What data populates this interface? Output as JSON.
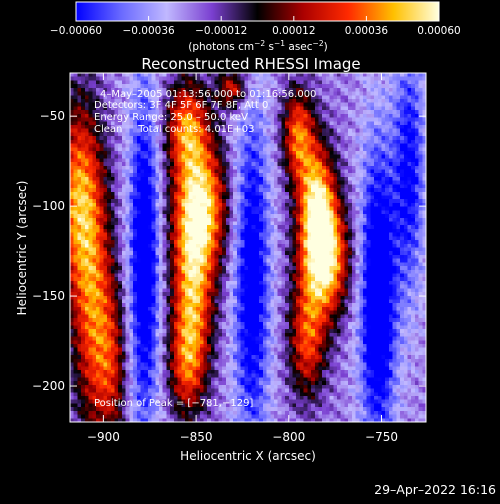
{
  "chart_data": {
    "type": "heatmap",
    "title": "Reconstructed RHESSI Image",
    "xlabel": "Heliocentric X (arcsec)",
    "ylabel": "Heliocentric Y (arcsec)",
    "xlim": [
      -918,
      -726
    ],
    "ylim": [
      -220,
      -26
    ],
    "x_ticks": [
      -900,
      -850,
      -800,
      -750
    ],
    "x_tick_labels": [
      "−900",
      "−850",
      "−800",
      "−750"
    ],
    "y_ticks": [
      -50,
      -100,
      -150,
      -200
    ],
    "y_tick_labels": [
      "−50",
      "−100",
      "−150",
      "−200"
    ],
    "colorbar": {
      "range": [
        -0.0006,
        0.0006
      ],
      "tick_values": [
        -0.0006,
        -0.00036,
        -0.00012,
        0.00012,
        0.00036,
        0.0006
      ],
      "tick_labels": [
        "−0.00060",
        "−0.00036",
        "−0.00012",
        "0.00012",
        "0.00036",
        "0.00060"
      ],
      "unit_prefix": "(photons cm",
      "unit_sup1": "−2",
      "unit_mid": " s",
      "unit_sup2": "−1",
      "unit_mid2": " asec",
      "unit_sup3": "−2",
      "unit_suffix": ")"
    },
    "annotations": [
      "4–May–2005 01:13:56.000 to 01:16:56.000",
      "Detectors: 3F 4F 5F 6F 7F 8F, Att 0",
      "Energy Range: 25.0 – 50.0 keV",
      "Clean     Total counts: 4.01E+03"
    ],
    "peak_label": "Position of Peak = [−781,−129]",
    "peak_position": [
      -781,
      -129
    ],
    "sources": [
      {
        "x": -913,
        "y": -95,
        "sx": 9,
        "sy": 38,
        "amp": 0.00062
      },
      {
        "x": -905,
        "y": -165,
        "sx": 8,
        "sy": 45,
        "amp": 0.0005
      },
      {
        "x": -895,
        "y": -190,
        "sx": 6,
        "sy": 30,
        "amp": 0.0003
      },
      {
        "x": -855,
        "y": -55,
        "sx": 8,
        "sy": 18,
        "amp": 0.00055
      },
      {
        "x": -848,
        "y": -100,
        "sx": 10,
        "sy": 25,
        "amp": 0.00078
      },
      {
        "x": -852,
        "y": -150,
        "sx": 8,
        "sy": 30,
        "amp": 0.0006
      },
      {
        "x": -855,
        "y": -190,
        "sx": 7,
        "sy": 20,
        "amp": 0.0004
      },
      {
        "x": -795,
        "y": -60,
        "sx": 6,
        "sy": 18,
        "amp": 0.00055
      },
      {
        "x": -785,
        "y": -95,
        "sx": 7,
        "sy": 22,
        "amp": 0.00065
      },
      {
        "x": -781,
        "y": -129,
        "sx": 9,
        "sy": 22,
        "amp": 0.00085
      },
      {
        "x": -790,
        "y": -175,
        "sx": 7,
        "sy": 22,
        "amp": 0.0005
      },
      {
        "x": -830,
        "y": -35,
        "sx": 6,
        "sy": 8,
        "amp": 0.00045
      },
      {
        "x": -878,
        "y": -130,
        "sx": 6,
        "sy": 70,
        "amp": -0.00055
      },
      {
        "x": -820,
        "y": -140,
        "sx": 7,
        "sy": 70,
        "amp": -0.0005
      },
      {
        "x": -752,
        "y": -150,
        "sx": 7,
        "sy": 60,
        "amp": -0.0006
      },
      {
        "x": -735,
        "y": -80,
        "sx": 6,
        "sy": 50,
        "amp": -0.0004
      }
    ]
  },
  "footer": {
    "timestamp": "29–Apr–2022 16:16"
  }
}
